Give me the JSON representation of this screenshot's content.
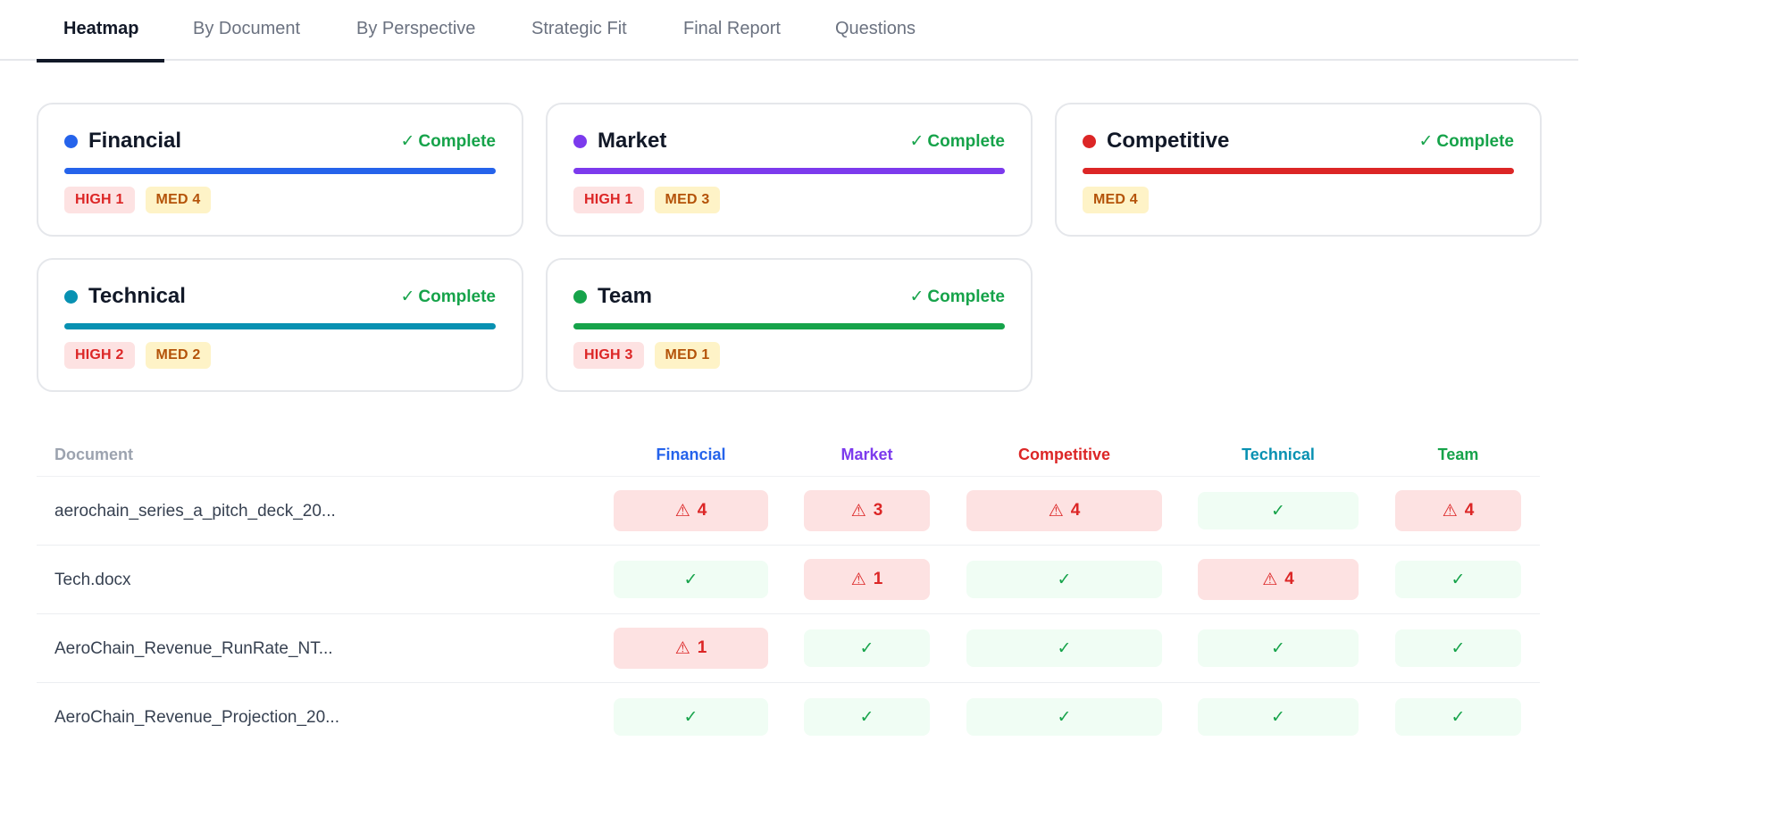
{
  "tabs": [
    {
      "label": "Heatmap",
      "active": true
    },
    {
      "label": "By Document"
    },
    {
      "label": "By Perspective"
    },
    {
      "label": "Strategic Fit"
    },
    {
      "label": "Final Report"
    },
    {
      "label": "Questions"
    }
  ],
  "colors": {
    "financial": "#2563eb",
    "market": "#7c3aed",
    "competitive": "#dc2626",
    "technical": "#0891b2",
    "team": "#16a34a",
    "complete": "#16a34a",
    "issue_bg": "#fde2e2",
    "ok_bg": "#f0fdf4"
  },
  "cards": [
    {
      "title": "Financial",
      "status_icon": "✓",
      "status": "Complete",
      "high": "HIGH 1",
      "med": "MED 4"
    },
    {
      "title": "Market",
      "status_icon": "✓",
      "status": "Complete",
      "high": "HIGH 1",
      "med": "MED 3"
    },
    {
      "title": "Competitive",
      "status_icon": "✓",
      "status": "Complete",
      "med": "MED 4"
    },
    {
      "title": "Technical",
      "status_icon": "✓",
      "status": "Complete",
      "high": "HIGH 2",
      "med": "MED 2"
    },
    {
      "title": "Team",
      "status_icon": "✓",
      "status": "Complete",
      "high": "HIGH 3",
      "med": "MED 1"
    }
  ],
  "heatmap": {
    "doc_header": "Document",
    "columns": [
      "Financial",
      "Market",
      "Competitive",
      "Technical",
      "Team"
    ],
    "warn_icon": "⚠",
    "ok_icon": "✓",
    "rows": [
      {
        "document": "aerochain_series_a_pitch_deck_20...",
        "cells": [
          "4",
          "3",
          "4",
          "✓",
          "4"
        ]
      },
      {
        "document": "Tech.docx",
        "cells": [
          "✓",
          "1",
          "✓",
          "4",
          "✓"
        ]
      },
      {
        "document": "AeroChain_Revenue_RunRate_NT...",
        "cells": [
          "1",
          "✓",
          "✓",
          "✓",
          "✓"
        ]
      },
      {
        "document": "AeroChain_Revenue_Projection_20...",
        "cells": [
          "✓",
          "✓",
          "✓",
          "✓",
          "✓"
        ]
      }
    ]
  }
}
